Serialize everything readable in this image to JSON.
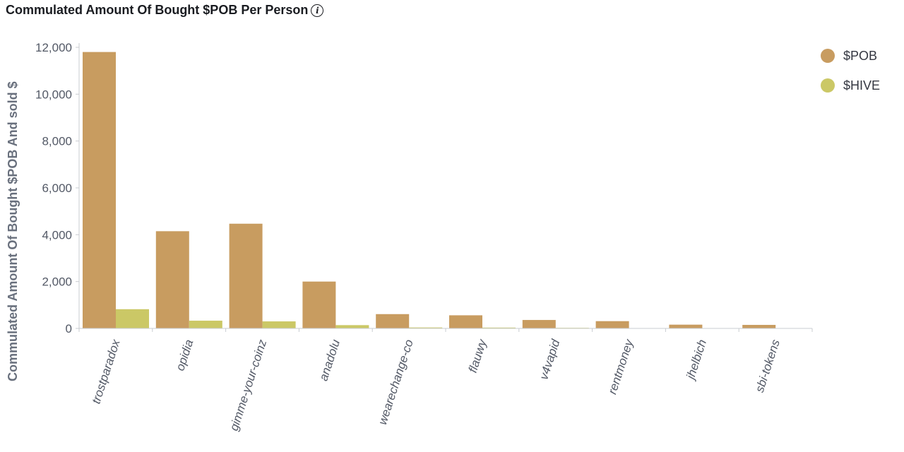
{
  "header": {
    "title": "Commulated Amount Of Bought $POB Per Person",
    "info_icon": "info-icon",
    "info_glyph": "i"
  },
  "chart_data": {
    "type": "bar",
    "title": "Commulated Amount Of Bought $POB Per Person",
    "ylabel": "Commulated Amount Of Bought $POB And sold $",
    "xlabel": "",
    "categories": [
      "trostparadox",
      "opidia",
      "gimme-your-coinz",
      "anadolu",
      "wearechange-co",
      "flauwy",
      "v4vapid",
      "rentmoney",
      "jhelbich",
      "sbi-tokens"
    ],
    "series": [
      {
        "name": "$POB",
        "color": "#c89c60",
        "values": [
          11800,
          4150,
          4470,
          2000,
          610,
          560,
          360,
          310,
          160,
          150
        ]
      },
      {
        "name": "$HIVE",
        "color": "#cbc866",
        "values": [
          820,
          330,
          300,
          140,
          40,
          35,
          25,
          0,
          0,
          0
        ]
      }
    ],
    "ylim": [
      0,
      12000
    ],
    "yticks": [
      0,
      2000,
      4000,
      6000,
      8000,
      10000,
      12000
    ],
    "ytick_labels": [
      "0",
      "2,000",
      "4,000",
      "6,000",
      "8,000",
      "10,000",
      "12,000"
    ],
    "grid": false,
    "legend": "top-right"
  }
}
